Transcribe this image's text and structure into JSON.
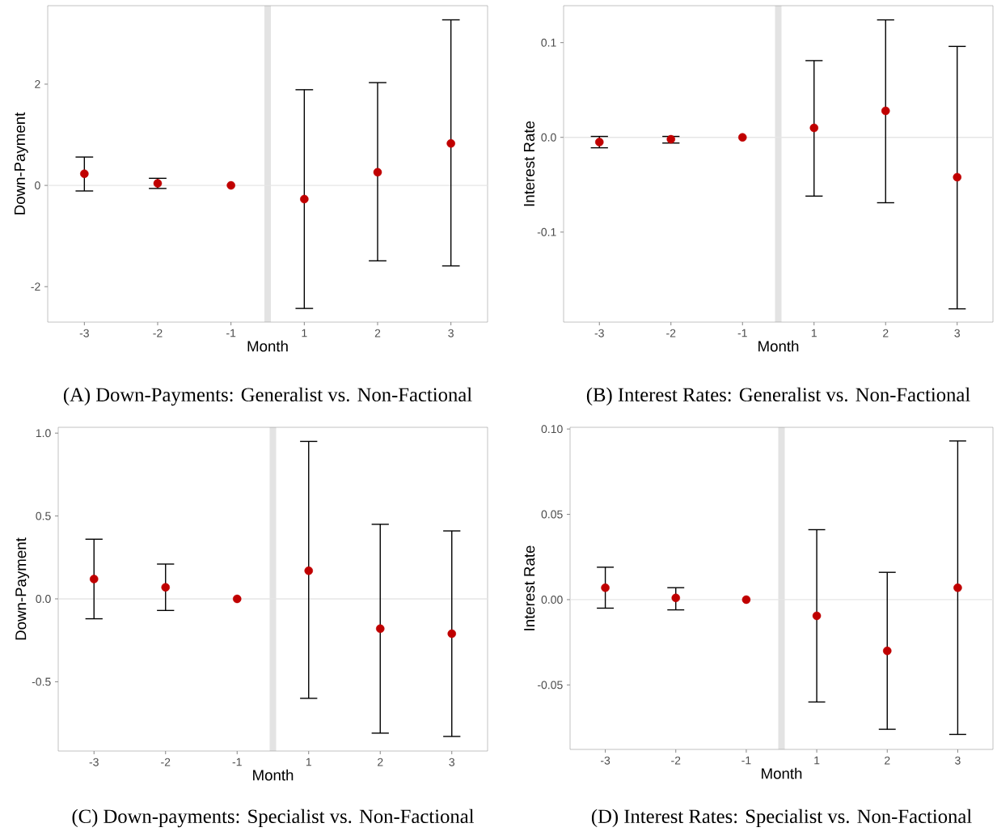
{
  "chart_data": [
    {
      "type": "scatter",
      "title": "(A) Down-Payments: Generalist vs. Non-Factional",
      "xlabel": "Month",
      "ylabel": "Down-Payment",
      "categories": [
        "-3",
        "-2",
        "-1",
        "1",
        "2",
        "3"
      ],
      "color": "#c00000",
      "values": [
        0.23,
        0.04,
        0,
        -0.27,
        0.26,
        0.83
      ],
      "errors": [
        [
          -0.11,
          0.56
        ],
        [
          -0.06,
          0.14
        ],
        null,
        [
          -2.43,
          1.89
        ],
        [
          -1.49,
          2.03
        ],
        [
          -1.59,
          3.27
        ]
      ],
      "ylim": [
        -2.7,
        3.55
      ],
      "yticks": [
        -2,
        0,
        2
      ],
      "ref_lines": [
        {
          "axis": "y",
          "value": 0,
          "color": "#e6e6e6"
        }
      ]
    },
    {
      "type": "scatter",
      "title": "(B) Interest Rates: Generalist vs. Non-Factional",
      "xlabel": "Month",
      "ylabel": "Interest Rate",
      "categories": [
        "-3",
        "-2",
        "-1",
        "1",
        "2",
        "3"
      ],
      "color": "#c00000",
      "values": [
        -0.005,
        -0.002,
        0,
        0.01,
        0.028,
        -0.042
      ],
      "errors": [
        [
          -0.011,
          0.001
        ],
        [
          -0.006,
          0.001
        ],
        null,
        [
          -0.062,
          0.081
        ],
        [
          -0.069,
          0.124
        ],
        [
          -0.181,
          0.096
        ]
      ],
      "ylim": [
        -0.195,
        0.139
      ],
      "yticks": [
        -0.1,
        {
          "value": 0,
          "label": "0.0"
        },
        0.1
      ],
      "ref_lines": [
        {
          "axis": "y",
          "value": 0,
          "color": "#e6e6e6"
        }
      ]
    },
    {
      "type": "scatter",
      "title": "(C) Down-payments: Specialist vs. Non-Factional",
      "xlabel": "Month",
      "ylabel": "Down-Payment",
      "categories": [
        "-3",
        "-2",
        "-1",
        "1",
        "2",
        "3"
      ],
      "color": "#c00000",
      "values": [
        0.12,
        0.07,
        0,
        0.17,
        -0.18,
        -0.21
      ],
      "errors": [
        [
          -0.12,
          0.36
        ],
        [
          -0.07,
          0.21
        ],
        null,
        [
          -0.6,
          0.95
        ],
        [
          -0.81,
          0.45
        ],
        [
          -0.83,
          0.41
        ]
      ],
      "ylim": [
        -0.918,
        1.035
      ],
      "yticks": [
        {
          "value": -0.5,
          "label": "-0.5"
        },
        {
          "value": 0,
          "label": "0.0"
        },
        {
          "value": 0.5,
          "label": "0.5"
        },
        {
          "value": 1,
          "label": "1.0"
        }
      ],
      "ref_lines": [
        {
          "axis": "y",
          "value": 0,
          "color": "#e6e6e6"
        }
      ]
    },
    {
      "type": "scatter",
      "title": "(D) Interest Rates: Specialist vs. Non-Factional",
      "xlabel": "Month",
      "ylabel": "Interest Rate",
      "categories": [
        "-3",
        "-2",
        "-1",
        "1",
        "2",
        "3"
      ],
      "color": "#c00000",
      "values": [
        0.007,
        0.001,
        0,
        -0.0095,
        -0.03,
        0.007
      ],
      "errors": [
        [
          -0.005,
          0.019
        ],
        [
          -0.006,
          0.007
        ],
        null,
        [
          -0.06,
          0.041
        ],
        [
          -0.076,
          0.016
        ],
        [
          -0.079,
          0.093
        ]
      ],
      "ylim": [
        -0.0878,
        0.101
      ],
      "yticks": [
        {
          "value": -0.05,
          "label": "-0.05"
        },
        {
          "value": 0,
          "label": "0.00"
        },
        {
          "value": 0.05,
          "label": "0.05"
        },
        {
          "value": 0.1,
          "label": "0.10"
        }
      ],
      "ref_lines": [
        {
          "axis": "y",
          "value": 0,
          "color": "#e6e6e6"
        }
      ]
    }
  ]
}
